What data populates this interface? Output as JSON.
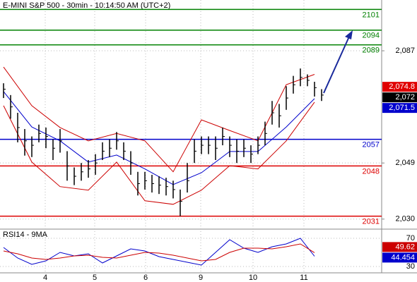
{
  "chart_data": [
    {
      "type": "ohlc",
      "title": "E-MINI S&P 500 - 30min - 10:14:50 AM (UTC+2)",
      "color": "#000000",
      "x": [
        0,
        1,
        2,
        3,
        4,
        5,
        6,
        7,
        8,
        9,
        10,
        11,
        12,
        13,
        14,
        15,
        16,
        17,
        18,
        19,
        20,
        21,
        22,
        23,
        24,
        25,
        26,
        27,
        28,
        29,
        30,
        31,
        32,
        33,
        34,
        35,
        36,
        37,
        38,
        39,
        40,
        41,
        42,
        43,
        44,
        45
      ],
      "high": [
        2076,
        2072,
        2066,
        2060.5,
        2058,
        2062,
        2061,
        2057,
        2060.5,
        2053,
        2047.5,
        2049,
        2050,
        2052,
        2056,
        2057,
        2059.5,
        2056,
        2053,
        2046,
        2046,
        2045,
        2044.5,
        2044,
        2043,
        2040,
        2049,
        2057,
        2058,
        2058,
        2058,
        2061,
        2058,
        2057,
        2057,
        2055,
        2058,
        2063,
        2070,
        2069,
        2075,
        2078.5,
        2081,
        2079,
        2076.5,
        2074
      ],
      "low": [
        2071,
        2064,
        2056,
        2051.5,
        2051,
        2056,
        2054,
        2050,
        2052.5,
        2043,
        2041.5,
        2043,
        2044,
        2045,
        2050,
        2051,
        2053.5,
        2050,
        2045,
        2038,
        2040,
        2039,
        2038.5,
        2038,
        2037,
        2031,
        2039,
        2049,
        2052,
        2052,
        2050,
        2055,
        2051,
        2049,
        2051,
        2049,
        2052,
        2055,
        2062,
        2061,
        2067,
        2072.5,
        2075,
        2075,
        2071.5,
        2070
      ],
      "close": [
        2074,
        2068,
        2061,
        2056.5,
        2055,
        2059,
        2058,
        2054,
        2056.5,
        2048,
        2044.5,
        2046,
        2047,
        2049,
        2053,
        2054,
        2056.5,
        2053,
        2049,
        2042,
        2043,
        2042,
        2041.5,
        2041,
        2040,
        2036,
        2043,
        2053,
        2055,
        2055,
        2054,
        2058,
        2055,
        2053,
        2054,
        2052,
        2055,
        2059,
        2066,
        2065,
        2071,
        2075.5,
        2078,
        2077,
        2074.5,
        2072
      ],
      "lines": [
        {
          "color": "#cc0000",
          "x": [
            0,
            4,
            8,
            12,
            16,
            20,
            24,
            28,
            32,
            36,
            40,
            44
          ],
          "values": [
            2081.5,
            2068.4,
            2061,
            2056.5,
            2059,
            2056.5,
            2046,
            2063.6,
            2060,
            2056.5,
            2075.5,
            2079
          ]
        },
        {
          "color": "#cc0000",
          "x": [
            0,
            4,
            8,
            12,
            16,
            20,
            24,
            28,
            32,
            36,
            40,
            44
          ],
          "values": [
            2068.4,
            2049.3,
            2041,
            2039.8,
            2049.3,
            2036.2,
            2035,
            2039.8,
            2048.1,
            2047,
            2056.5,
            2069.6
          ]
        },
        {
          "color": "#0000cc",
          "x": [
            0,
            4,
            8,
            12,
            16,
            20,
            24,
            28,
            32,
            36,
            40,
            44
          ],
          "values": [
            2073.2,
            2061.2,
            2056.5,
            2049.3,
            2051.7,
            2047,
            2041.7,
            2045.7,
            2052.9,
            2052.9,
            2061.2,
            2070.8
          ]
        }
      ],
      "levels": [
        {
          "value": 2101,
          "color": "#008000"
        },
        {
          "value": 2094,
          "color": "#008000"
        },
        {
          "value": 2089,
          "color": "#008000"
        },
        {
          "value": 2057,
          "color": "#0000cc"
        },
        {
          "value": 2048,
          "color": "#dd0000"
        },
        {
          "value": 2031,
          "color": "#dd0000"
        }
      ],
      "price_labels": [
        {
          "value": 2074.8,
          "label": "2,074.8",
          "color": "#e00000"
        },
        {
          "value": 2072,
          "label": "2,072",
          "color": "#000000"
        },
        {
          "value": 2071.5,
          "label": "2,071.5",
          "color": "#0000cc"
        }
      ],
      "xlim": [
        -0.5,
        53.5
      ],
      "xticks": [
        {
          "value": 5.9,
          "label": "4"
        },
        {
          "value": 12.9,
          "label": "5"
        },
        {
          "value": 20.1,
          "label": "6"
        },
        {
          "value": 27.9,
          "label": "9"
        },
        {
          "value": 35.3,
          "label": "10"
        },
        {
          "value": 42.5,
          "label": "11"
        }
      ],
      "ylim": [
        2026.6,
        2104.2
      ],
      "yticks": [
        {
          "value": 2087,
          "label": "2,087"
        },
        {
          "value": 2049,
          "label": "2,049"
        },
        {
          "value": 2030,
          "label": "2,030"
        }
      ],
      "grid": true
    },
    {
      "type": "line",
      "title": "RSI14 - 9MA",
      "series": [
        {
          "color": "#0000cc",
          "x": [
            0,
            2,
            4,
            6,
            8,
            10,
            12,
            14,
            16,
            18,
            20,
            22,
            24,
            26,
            28,
            30,
            32,
            34,
            36,
            38,
            40,
            42,
            44
          ],
          "values": [
            57,
            42,
            33,
            38,
            50,
            45,
            48,
            35,
            45,
            55,
            52,
            44,
            40,
            36,
            32,
            50,
            68,
            56,
            50,
            58,
            62,
            70,
            44.454
          ]
        },
        {
          "color": "#cc0000",
          "x": [
            0,
            2,
            4,
            6,
            8,
            10,
            12,
            14,
            16,
            18,
            20,
            22,
            24,
            26,
            28,
            30,
            32,
            34,
            36,
            38,
            40,
            42,
            44
          ],
          "values": [
            52,
            48,
            42,
            40,
            42,
            45,
            46,
            43,
            42,
            46,
            50,
            49,
            46,
            42,
            38,
            40,
            50,
            56,
            56,
            55,
            58,
            62,
            49.62
          ]
        }
      ],
      "ylim": [
        21,
        83
      ],
      "yticks": [
        70,
        30
      ]
    }
  ]
}
